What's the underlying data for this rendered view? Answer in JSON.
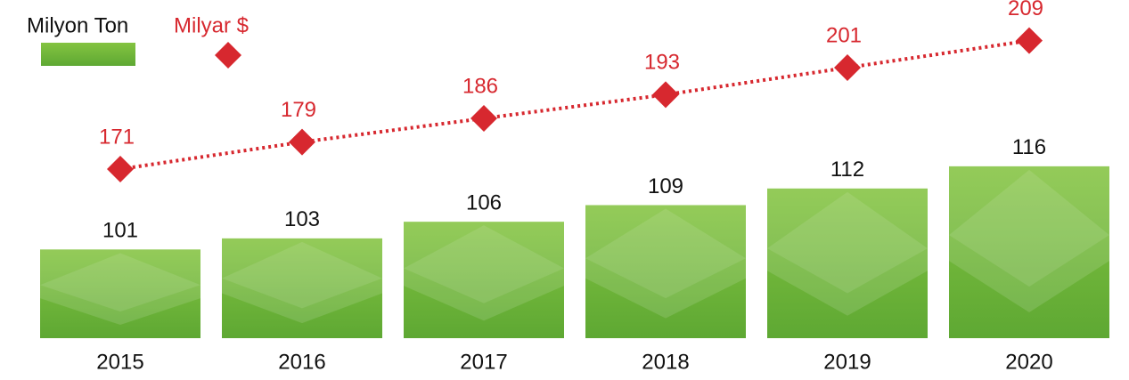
{
  "chart_data": {
    "type": "bar_line",
    "categories": [
      "2015",
      "2016",
      "2017",
      "2018",
      "2019",
      "2020"
    ],
    "series": [
      {
        "name": "Milyon Ton",
        "type": "bar",
        "color": "#6cb33f",
        "values": [
          101,
          103,
          106,
          109,
          112,
          116
        ]
      },
      {
        "name": "Milyar $",
        "type": "line",
        "axis": "y2",
        "color": "#d7282f",
        "values": [
          171,
          179,
          186,
          193,
          201,
          209
        ]
      }
    ],
    "ylim": [
      85,
      146
    ],
    "y2lim": [
      121,
      221
    ],
    "grid": false
  }
}
